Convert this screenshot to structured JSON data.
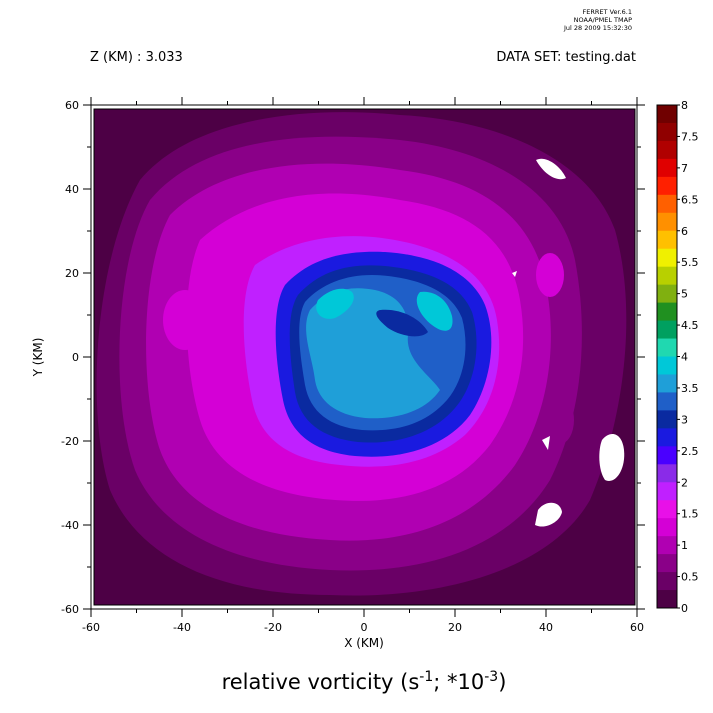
{
  "header": {
    "ferret_line1": "FERRET Ver.6.1",
    "ferret_line2": "NOAA/PMEL TMAP",
    "ferret_line3": "Jul 28 2009 15:32:30",
    "level_label": "Z (KM) : 3.033",
    "dataset_label": "DATA SET: testing.dat"
  },
  "chart_data": {
    "type": "heatmap",
    "title": "relative vorticity (s-1; *10-3)",
    "title_parts": {
      "prefix": "relative vorticity (s",
      "exp1": "-1",
      "mid": "; *10",
      "exp2": "-3",
      "suffix": ")"
    },
    "xlabel": "X (KM)",
    "ylabel": "Y (KM)",
    "xlim": [
      -60,
      60
    ],
    "ylim": [
      -60,
      60
    ],
    "x_ticks": [
      -60,
      -40,
      -20,
      0,
      20,
      40,
      60
    ],
    "x_tick_labels": [
      "-60",
      "-40",
      "-20",
      "0",
      "20",
      "40",
      "60"
    ],
    "y_ticks": [
      -60,
      -40,
      -20,
      0,
      20,
      40,
      60
    ],
    "y_tick_labels": [
      "-60",
      "-40",
      "-20",
      "0",
      "20",
      "40",
      "60"
    ],
    "grid": false,
    "legend_position": "right",
    "colorbar_levels": [
      0,
      0.5,
      1,
      1.5,
      2,
      2.5,
      3,
      3.5,
      4,
      4.5,
      5,
      5.5,
      6,
      6.5,
      7,
      7.5,
      8
    ],
    "colorbar_labels": [
      "0",
      "0.5",
      "1",
      "1.5",
      "2",
      "2.5",
      "3",
      "3.5",
      "4",
      "4.5",
      "5",
      "5.5",
      "6",
      "6.5",
      "7",
      "7.5",
      "8"
    ],
    "colorbar_colors": [
      "#4d0045",
      "#6a0066",
      "#8a0088",
      "#b000b2",
      "#d400d6",
      "#e810e8",
      "#c020ff",
      "#8a2be8",
      "#4a00ff",
      "#1a1ae0",
      "#0a2aa0",
      "#1f5fc8",
      "#1f9fd8",
      "#00c8d8",
      "#20d8b0",
      "#00a060",
      "#209020",
      "#80b010",
      "#b8d000",
      "#f0f000",
      "#ffc000",
      "#ff9000",
      "#ff6000",
      "#ff2000",
      "#e00000",
      "#b00000",
      "#900000",
      "#700000"
    ],
    "field_description_levels": {
      "background_outer": 0.25,
      "ring": 1.25,
      "core_edge": 2.25,
      "core": 3.25,
      "core_max": 4.0
    }
  }
}
